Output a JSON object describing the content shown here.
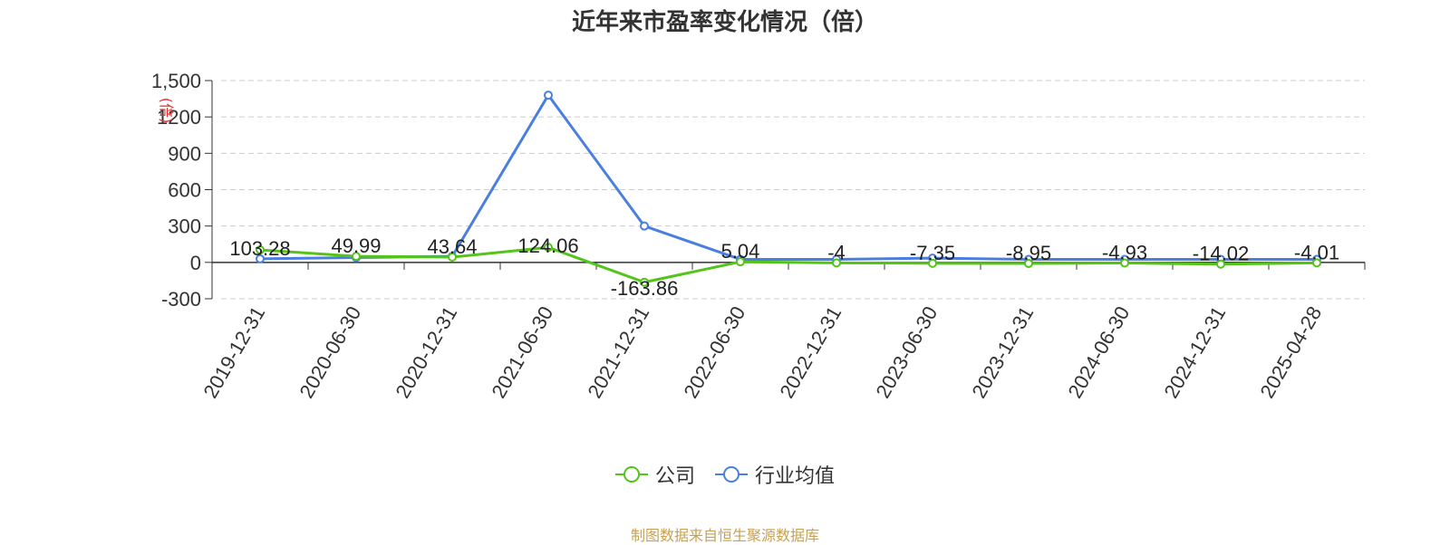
{
  "chart_data": {
    "type": "line",
    "title": "近年来市盈率变化情况（倍）",
    "ylabel": "(倍)",
    "categories": [
      "2019-12-31",
      "2020-06-30",
      "2020-12-31",
      "2021-06-30",
      "2021-12-31",
      "2022-06-30",
      "2022-12-31",
      "2023-06-30",
      "2023-12-31",
      "2024-06-30",
      "2024-12-31",
      "2025-04-28"
    ],
    "ylim": [
      -300,
      1500
    ],
    "yticks": [
      -300,
      0,
      300,
      600,
      900,
      "1200",
      1500
    ],
    "ytick_labels": [
      "-300",
      "0",
      "300",
      "600",
      "900",
      "1200",
      "1,500"
    ],
    "grid": true,
    "legend_position": "bottom-center",
    "series": [
      {
        "name": "公司",
        "color": "#52c41a",
        "values": [
          103.28,
          49.99,
          43.64,
          124.06,
          -163.86,
          5.04,
          -4,
          -7.35,
          -8.95,
          -4.93,
          -14.02,
          -4.01
        ],
        "labels": [
          "103.28",
          "49.99",
          "43.64",
          "124.06",
          "-163.86",
          "5.04",
          "-4",
          "-7.35",
          "-8.95",
          "-4.93",
          "-14.02",
          "-4.01"
        ]
      },
      {
        "name": "行业均值",
        "color": "#4a7fe0",
        "values": [
          30,
          40,
          50,
          1380,
          300,
          25,
          25,
          35,
          25,
          25,
          25,
          25
        ]
      }
    ]
  },
  "source_note": "制图数据来自恒生聚源数据库",
  "source_color": "#c8a052"
}
